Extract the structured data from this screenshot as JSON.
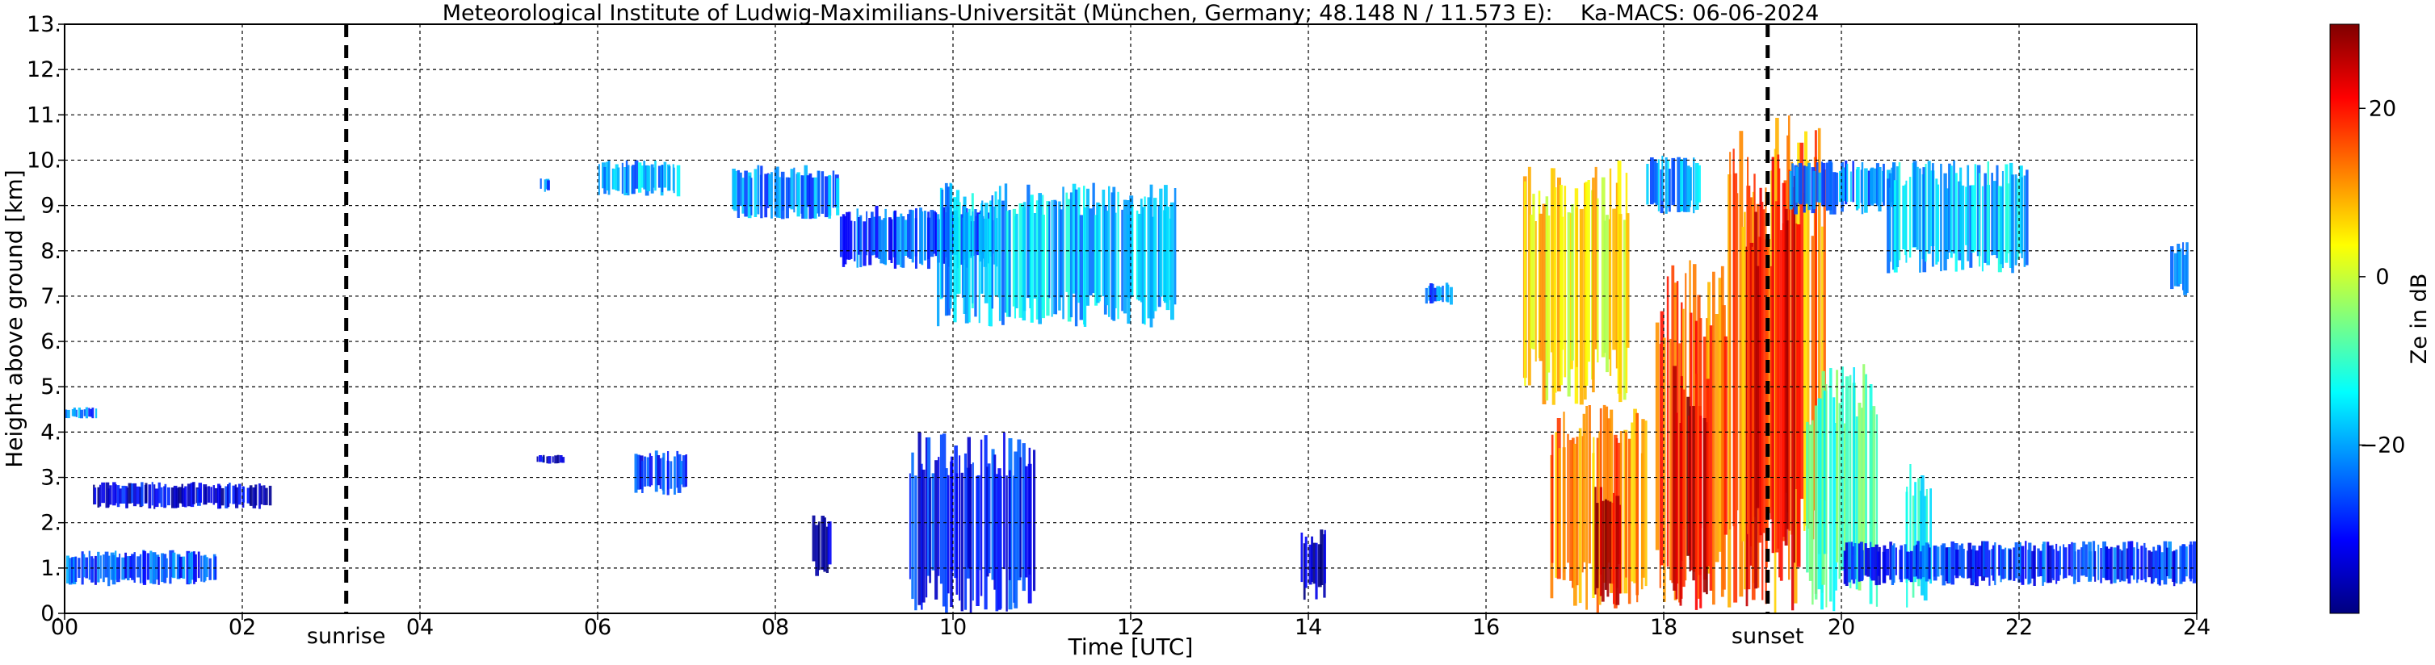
{
  "chart_data": {
    "type": "heatmap",
    "title": "Meteorological Institute of Ludwig-Maximilians-Universität (München, Germany; 48.148 N / 11.573 E):    Ka-MACS: 06-06-2024",
    "xlabel": "Time [UTC]",
    "ylabel": "Height above ground [km]",
    "xlim": [
      0,
      24
    ],
    "ylim": [
      0,
      13
    ],
    "x_ticks": [
      "00",
      "02",
      "04",
      "06",
      "08",
      "10",
      "12",
      "14",
      "16",
      "18",
      "20",
      "22",
      "24"
    ],
    "x_tick_values": [
      0,
      2,
      4,
      6,
      8,
      10,
      12,
      14,
      16,
      18,
      20,
      22,
      24
    ],
    "y_ticks": [
      "0.",
      "1.",
      "2.",
      "3.",
      "4.",
      "5.",
      "6.",
      "7.",
      "8.",
      "9.",
      "10.",
      "11.",
      "12.",
      "13."
    ],
    "y_tick_values": [
      0,
      1,
      2,
      3,
      4,
      5,
      6,
      7,
      8,
      9,
      10,
      11,
      12,
      13
    ],
    "grid": true,
    "colorbar": {
      "label": "Ze in dB",
      "range": [
        -40,
        30
      ],
      "ticks": [
        "20",
        "0",
        "−20"
      ],
      "tick_values": [
        20,
        0,
        -20
      ],
      "colormap": [
        "#00007f",
        "#0000ff",
        "#007fff",
        "#00ffff",
        "#7fff7f",
        "#ffff00",
        "#ff7f00",
        "#ff0000",
        "#7f0000"
      ]
    },
    "markers": [
      {
        "label": "sunrise",
        "time": 3.17
      },
      {
        "label": "sunset",
        "time": 19.17
      }
    ],
    "echo_regions": [
      {
        "t0": 0.0,
        "t1": 1.7,
        "h0": 0.6,
        "h1": 1.4,
        "ze": -26
      },
      {
        "t0": 0.0,
        "t1": 0.35,
        "h0": 4.3,
        "h1": 4.55,
        "ze": -24
      },
      {
        "t0": 0.3,
        "t1": 2.3,
        "h0": 2.3,
        "h1": 2.9,
        "ze": -33
      },
      {
        "t0": 5.35,
        "t1": 5.45,
        "h0": 9.3,
        "h1": 9.6,
        "ze": -22
      },
      {
        "t0": 5.3,
        "t1": 5.6,
        "h0": 3.3,
        "h1": 3.5,
        "ze": -32
      },
      {
        "t0": 6.0,
        "t1": 6.9,
        "h0": 9.2,
        "h1": 10.0,
        "ze": -20
      },
      {
        "t0": 6.4,
        "t1": 7.0,
        "h0": 2.6,
        "h1": 3.6,
        "ze": -28
      },
      {
        "t0": 7.5,
        "t1": 8.7,
        "h0": 8.7,
        "h1": 9.9,
        "ze": -22
      },
      {
        "t0": 8.7,
        "t1": 10.5,
        "h0": 7.6,
        "h1": 9.0,
        "ze": -26
      },
      {
        "t0": 9.8,
        "t1": 12.5,
        "h0": 6.3,
        "h1": 9.5,
        "ze": -18
      },
      {
        "t0": 9.5,
        "t1": 10.9,
        "h0": 0.0,
        "h1": 4.0,
        "ze": -30
      },
      {
        "t0": 8.4,
        "t1": 8.6,
        "h0": 0.8,
        "h1": 2.2,
        "ze": -38
      },
      {
        "t0": 13.9,
        "t1": 14.2,
        "h0": 0.3,
        "h1": 1.9,
        "ze": -38
      },
      {
        "t0": 15.3,
        "t1": 15.6,
        "h0": 6.8,
        "h1": 7.3,
        "ze": -24
      },
      {
        "t0": 16.4,
        "t1": 17.6,
        "h0": 4.5,
        "h1": 10.0,
        "ze": 5
      },
      {
        "t0": 16.7,
        "t1": 17.8,
        "h0": 0.0,
        "h1": 4.6,
        "ze": 12
      },
      {
        "t0": 17.2,
        "t1": 17.5,
        "h0": 0.0,
        "h1": 2.8,
        "ze": 24
      },
      {
        "t0": 17.8,
        "t1": 18.4,
        "h0": 8.8,
        "h1": 10.1,
        "ze": -20
      },
      {
        "t0": 17.9,
        "t1": 18.7,
        "h0": 0.0,
        "h1": 7.8,
        "ze": 15
      },
      {
        "t0": 18.1,
        "t1": 18.5,
        "h0": 0.0,
        "h1": 5.5,
        "ze": 24
      },
      {
        "t0": 18.7,
        "t1": 19.8,
        "h0": 0.0,
        "h1": 11.0,
        "ze": 12
      },
      {
        "t0": 18.9,
        "t1": 19.5,
        "h0": 0.0,
        "h1": 10.2,
        "ze": 22
      },
      {
        "t0": 19.6,
        "t1": 20.4,
        "h0": 0.0,
        "h1": 5.5,
        "ze": -10
      },
      {
        "t0": 19.4,
        "t1": 20.6,
        "h0": 8.8,
        "h1": 10.0,
        "ze": -22
      },
      {
        "t0": 20.5,
        "t1": 22.1,
        "h0": 7.5,
        "h1": 10.0,
        "ze": -18
      },
      {
        "t0": 20.7,
        "t1": 21.0,
        "h0": 0.0,
        "h1": 3.4,
        "ze": -12
      },
      {
        "t0": 20.0,
        "t1": 24.0,
        "h0": 0.6,
        "h1": 1.6,
        "ze": -28
      },
      {
        "t0": 23.7,
        "t1": 23.9,
        "h0": 7.0,
        "h1": 8.2,
        "ze": -22
      }
    ]
  }
}
